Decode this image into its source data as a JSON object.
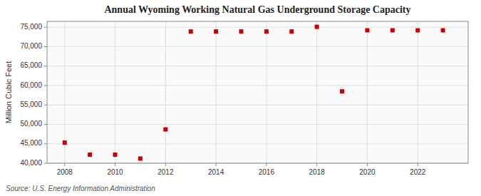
{
  "chart_data": {
    "type": "scatter",
    "title": "Annual Wyoming Working Natural Gas Underground Storage Capacity",
    "ylabel": "Million Cubic Feet",
    "source": "Source: U.S. Energy Information Administration",
    "x": [
      2008,
      2009,
      2010,
      2011,
      2012,
      2013,
      2014,
      2015,
      2016,
      2017,
      2018,
      2019,
      2020,
      2021,
      2022,
      2023
    ],
    "values": [
      45300,
      42200,
      42200,
      41200,
      48700,
      73900,
      73900,
      73900,
      73900,
      73900,
      75100,
      58500,
      74200,
      74200,
      74200,
      74200
    ],
    "color": "#cc0000",
    "marker": "square",
    "xlim": [
      2007.3,
      2024.0
    ],
    "xticks": [
      2008,
      2010,
      2012,
      2014,
      2016,
      2018,
      2020,
      2022
    ],
    "ylim": [
      40000,
      76500
    ],
    "yticks": [
      {
        "value": 40000,
        "label": "40,000"
      },
      {
        "value": 45000,
        "label": "45,000"
      },
      {
        "value": 50000,
        "label": "50,000"
      },
      {
        "value": 55000,
        "label": "55,000"
      },
      {
        "value": 60000,
        "label": "60,000"
      },
      {
        "value": 65000,
        "label": "65,000"
      },
      {
        "value": 70000,
        "label": "70,000"
      },
      {
        "value": 75000,
        "label": "75,000"
      }
    ],
    "grid": true
  }
}
